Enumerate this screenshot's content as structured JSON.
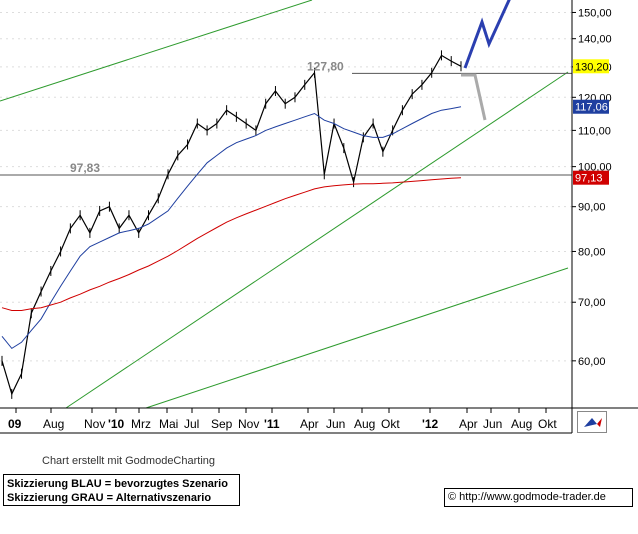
{
  "chart_data": {
    "type": "line",
    "title": "",
    "xlabel": "",
    "ylabel": "",
    "ylim": [
      53,
      155
    ],
    "y_scale": "log",
    "y_ticks": [
      "150,00",
      "140,00",
      "130,00",
      "120,00",
      "110,00",
      "100,00",
      "90,00",
      "80,00",
      "70,00",
      "60,00"
    ],
    "x_ticks": [
      "09",
      "Aug",
      "Nov",
      "'10",
      "Mrz",
      "Mai",
      "Jul",
      "Sep",
      "Nov",
      "'11",
      "Apr",
      "Jun",
      "Aug",
      "Okt",
      "'12",
      "Apr",
      "Jun",
      "Aug",
      "Okt"
    ],
    "price_tags": [
      {
        "label": "130,20",
        "value": 130.2,
        "bg": "#ffff00",
        "fg": "#000000"
      },
      {
        "label": "117,06",
        "value": 117.06,
        "bg": "#1f3fa0",
        "fg": "#ffffff"
      },
      {
        "label": "97,13",
        "value": 97.13,
        "bg": "#d00000",
        "fg": "#ffffff"
      }
    ],
    "annotations": [
      {
        "label": "127,80",
        "value": 127.8
      },
      {
        "label": "97,83",
        "value": 97.83
      }
    ],
    "horizontal_lines": [
      127.8,
      97.83
    ],
    "series": [
      {
        "values": [
          60,
          55,
          58,
          68,
          72,
          76,
          80,
          85,
          88,
          84,
          89,
          90,
          85,
          88,
          84,
          88,
          92,
          98,
          103,
          106,
          112,
          110,
          112,
          116,
          114,
          112,
          110,
          118,
          122,
          118,
          120,
          124,
          128,
          98,
          112,
          105,
          96,
          108,
          112,
          104,
          110,
          116,
          121,
          124,
          128,
          134,
          132,
          130.2
        ],
        "color": "#000000"
      },
      {
        "values": [
          64,
          62,
          63,
          65,
          67,
          70,
          73,
          76,
          79,
          81,
          82,
          83,
          84,
          84.5,
          85,
          86,
          87.5,
          89,
          92,
          95,
          98,
          101,
          103,
          105,
          106.5,
          107.5,
          108.5,
          110,
          111,
          112,
          113,
          114,
          115,
          113,
          112,
          110.5,
          109.5,
          108.5,
          108,
          108,
          109,
          110.5,
          112,
          113.5,
          115,
          116,
          116.5,
          117.06
        ],
        "color": "#1f3fa0"
      },
      {
        "values": [
          69,
          68.5,
          68.5,
          68.8,
          69,
          69.5,
          70,
          70.8,
          71.5,
          72.3,
          73,
          73.8,
          74.5,
          75.3,
          76.2,
          77,
          78,
          79,
          80.2,
          81.5,
          82.8,
          84,
          85.2,
          86.4,
          87.4,
          88.3,
          89.2,
          90.1,
          91,
          91.9,
          92.7,
          93.5,
          94.3,
          94.8,
          95.1,
          95.3,
          95.5,
          95.6,
          95.6,
          95.7,
          95.8,
          96,
          96.2,
          96.4,
          96.6,
          96.8,
          97,
          97.13
        ],
        "color": "#d00000"
      }
    ]
  },
  "footer": {
    "credit": "Chart erstellt mit GodmodeCharting",
    "legend_blue": "Skizzierung BLAU = bevorzugtes Szenario",
    "legend_gray": "Skizzierung GRAU = Alternativszenario",
    "url": "© http://www.godmode-trader.de"
  }
}
